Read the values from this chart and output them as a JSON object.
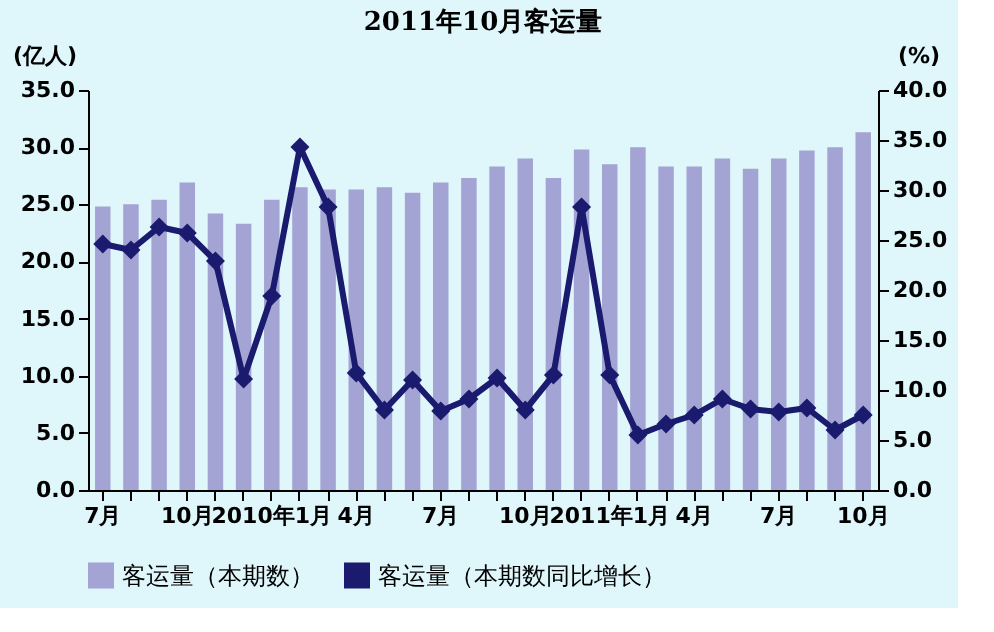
{
  "chart_data": {
    "type": "bar",
    "title": "2011年10月客运量",
    "ylabel": "(亿人)",
    "y2label": "(%)",
    "categories": [
      "7月",
      null,
      null,
      "10月",
      null,
      null,
      "2010年1月",
      null,
      null,
      "4月",
      null,
      null,
      "7月",
      null,
      null,
      "10月",
      null,
      null,
      "2011年1月",
      null,
      null,
      "4月",
      null,
      null,
      "7月",
      null,
      null,
      "10月"
    ],
    "series": [
      {
        "name": "客运量（本期数）",
        "color": "#a4a4d4",
        "values": [
          24.8,
          25.0,
          25.4,
          26.9,
          24.2,
          23.3,
          25.4,
          26.5,
          26.3,
          26.3,
          26.5,
          26.0,
          26.9,
          27.3,
          28.3,
          29.0,
          27.3,
          29.8,
          28.5,
          30.0,
          28.3,
          28.3,
          29.0,
          28.1,
          29.0,
          29.7,
          30.0,
          31.3
        ]
      },
      {
        "name": "客运量（本期数同比增长）",
        "type": "line",
        "axis": "y2",
        "color": "#1a1a6e",
        "marker": "diamond",
        "values": [
          24.6,
          24.0,
          26.3,
          25.7,
          22.9,
          11.1,
          19.4,
          34.3,
          28.3,
          11.7,
          8.0,
          11.0,
          7.9,
          9.1,
          11.2,
          8.0,
          11.5,
          28.3,
          11.5,
          5.5,
          6.6,
          7.5,
          9.1,
          8.1,
          7.8,
          8.2,
          6.0,
          7.5
        ]
      }
    ],
    "ylim": [
      0,
      35
    ],
    "yticks": [
      {
        "value": 0,
        "label": "0.0"
      },
      {
        "value": 5,
        "label": "5.0"
      },
      {
        "value": 10,
        "label": "10.0"
      },
      {
        "value": 15,
        "label": "15.0"
      },
      {
        "value": 20,
        "label": "20.0"
      },
      {
        "value": 25,
        "label": "25.0"
      },
      {
        "value": 30,
        "label": "30.0"
      },
      {
        "value": 35,
        "label": "35.0"
      }
    ],
    "y2lim": [
      0,
      40
    ],
    "y2ticks": [
      {
        "value": 0,
        "label": "0.0"
      },
      {
        "value": 5,
        "label": "5.0"
      },
      {
        "value": 10,
        "label": "10.0"
      },
      {
        "value": 15,
        "label": "15.0"
      },
      {
        "value": 20,
        "label": "20.0"
      },
      {
        "value": 25,
        "label": "25.0"
      },
      {
        "value": 30,
        "label": "30.0"
      },
      {
        "value": 35,
        "label": "35.0"
      },
      {
        "value": 40,
        "label": "40.0"
      }
    ],
    "grid": false,
    "legend": "bottom"
  }
}
